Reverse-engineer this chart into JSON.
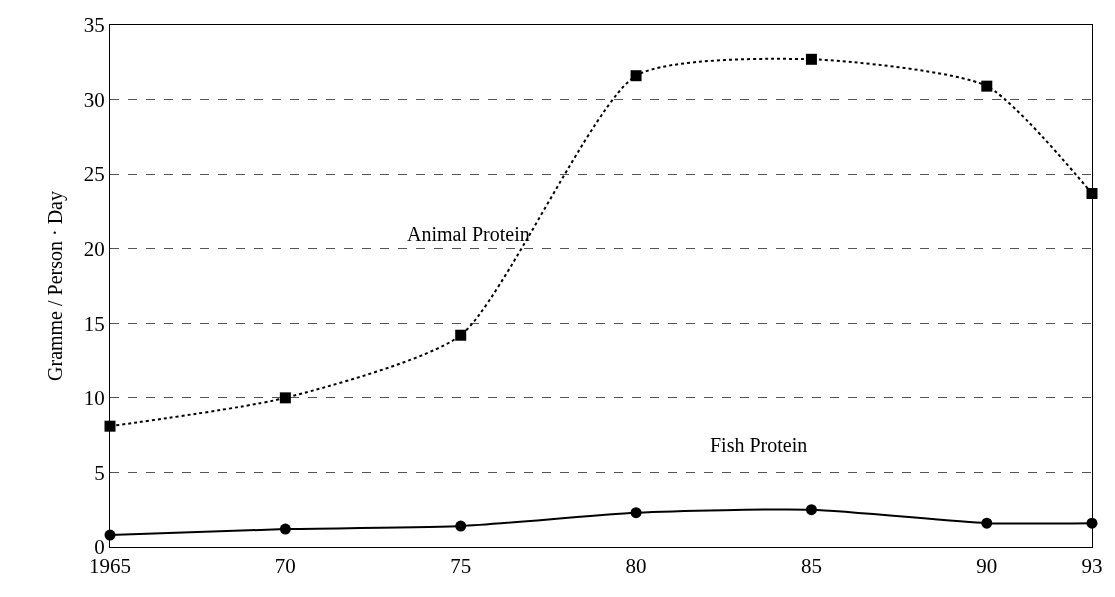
{
  "chart_data": {
    "type": "line",
    "ylabel": "Gramme / Person · Day",
    "x": [
      1965,
      1970,
      1975,
      1980,
      1985,
      1990,
      1993
    ],
    "series": [
      {
        "name": "Animal Protein",
        "color": "#000000",
        "values": [
          8.1,
          10.0,
          14.2,
          31.6,
          32.7,
          30.9,
          23.7
        ],
        "marker": "square",
        "line_style": "dotted"
      },
      {
        "name": "Fish Protein",
        "color": "#000000",
        "values": [
          0.8,
          1.2,
          1.4,
          2.3,
          2.5,
          1.6,
          1.6
        ],
        "marker": "circle",
        "line_style": "solid"
      }
    ],
    "xlim": [
      1965,
      1993
    ],
    "xticks": [
      1965,
      {
        "value": 1970,
        "label": "70"
      },
      {
        "value": 1975,
        "label": "75"
      },
      {
        "value": 1980,
        "label": "80"
      },
      {
        "value": 1985,
        "label": "85"
      },
      {
        "value": 1990,
        "label": "90"
      },
      {
        "value": 1993,
        "label": "93"
      }
    ],
    "ylim": [
      0,
      35
    ],
    "yticks": [
      0,
      5,
      10,
      15,
      20,
      25,
      30,
      35
    ],
    "grid": "y",
    "legend": false
  }
}
